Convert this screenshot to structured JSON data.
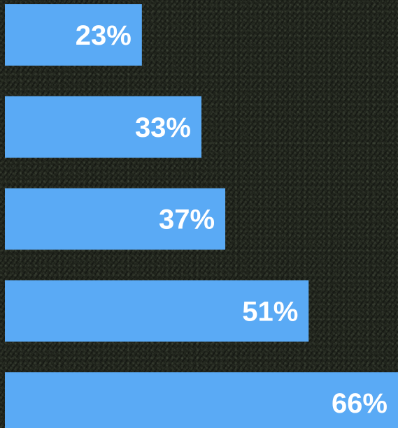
{
  "colors": {
    "bar": "#5aaaf5",
    "label": "#ffffff",
    "background": "#1f231b"
  },
  "chart_data": {
    "type": "bar",
    "orientation": "horizontal",
    "categories": [
      "",
      "",
      "",
      "",
      ""
    ],
    "values": [
      23,
      33,
      37,
      51,
      66
    ],
    "labels": [
      "23%",
      "33%",
      "37%",
      "51%",
      "66%"
    ],
    "xlim": [
      0,
      66
    ],
    "grid": false,
    "axes_visible": false
  }
}
